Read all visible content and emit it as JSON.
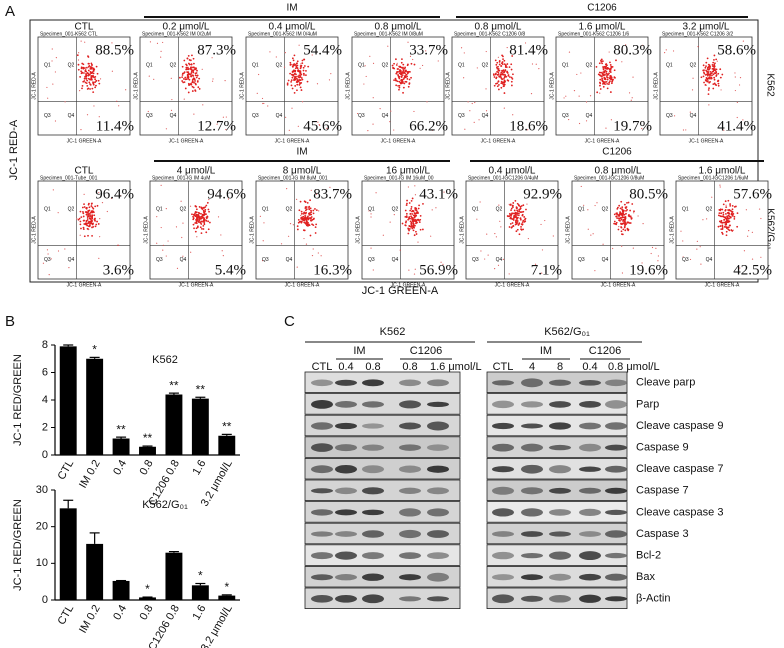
{
  "panel_labels": [
    "A",
    "B",
    "C"
  ],
  "panel_a": {
    "y_label": "JC-1 RED-A",
    "x_label": "JC-1 GREEN-A",
    "quadrant_labels": [
      "Q1",
      "Q2",
      "Q3",
      "Q4"
    ],
    "rows": [
      {
        "cell_line": "K562",
        "control": "CTL",
        "groups": [
          {
            "name": "IM",
            "doses": [
              "0.2 μmol/L",
              "0.4 μmol/L",
              "0.8 μmol/L"
            ]
          },
          {
            "name": "C1206",
            "doses": [
              "0.8 μmol/L",
              "1.6 μmol/L",
              "3.2 μmol/L"
            ]
          }
        ],
        "plots": [
          {
            "title": "Specimen_001-K562 CTL",
            "upper": "88.5%",
            "lower": "11.4%"
          },
          {
            "title": "Specimen_001-K562 IM 0/2uM",
            "upper": "87.3%",
            "lower": "12.7%"
          },
          {
            "title": "Specimen_001-K562 IM 0/4uM",
            "upper": "54.4%",
            "lower": "45.6%"
          },
          {
            "title": "Specimen_001-K562 IM 0/8uM",
            "upper": "33.7%",
            "lower": "66.2%"
          },
          {
            "title": "Specimen_001-K562 C1206 0/8",
            "upper": "81.4%",
            "lower": "18.6%"
          },
          {
            "title": "Specimen_001-K562 C1206 1/6",
            "upper": "80.3%",
            "lower": "19.7%"
          },
          {
            "title": "Specimen_001-K562 C1206 3/2",
            "upper": "58.6%",
            "lower": "41.4%"
          }
        ]
      },
      {
        "cell_line": "K562/G₀₁",
        "control": "CTL",
        "groups": [
          {
            "name": "IM",
            "doses": [
              "4 μmol/L",
              "8 μmol/L",
              "16 μmol/L"
            ]
          },
          {
            "name": "C1206",
            "doses": [
              "0.4 μmol/L",
              "0.8 μmol/L",
              "1.6 μmol/L"
            ]
          }
        ],
        "plots": [
          {
            "title": "Specimen_001-Tube_001",
            "upper": "96.4%",
            "lower": "3.6%"
          },
          {
            "title": "Specimen_001-IG IM 4uM",
            "upper": "94.6%",
            "lower": "5.4%"
          },
          {
            "title": "Specimen_001-IG IM 8uM_001",
            "upper": "83.7%",
            "lower": "16.3%"
          },
          {
            "title": "Specimen_001-IG IM 16uM_00",
            "upper": "43.1%",
            "lower": "56.9%"
          },
          {
            "title": "Specimen_001-IGC1206 0/4uM",
            "upper": "92.9%",
            "lower": "7.1%"
          },
          {
            "title": "Specimen_001-IGC1206 0/8uM",
            "upper": "80.5%",
            "lower": "19.6%"
          },
          {
            "title": "Specimen_001-IGC1206 1/6uM",
            "upper": "57.6%",
            "lower": "42.5%"
          }
        ]
      }
    ]
  },
  "chart_data": [
    {
      "type": "bar",
      "title": "K562",
      "y_label": "JC-1 RED/GREEN",
      "color": "#000000",
      "categories": [
        "CTL",
        "IM 0.2",
        "0.4",
        "0.8",
        "C1206 0.8",
        "1.6",
        "3.2 μmol/L"
      ],
      "values": [
        7.9,
        7.0,
        1.2,
        0.6,
        4.4,
        4.1,
        1.4
      ],
      "errors": [
        0.1,
        0.1,
        0.1,
        0.05,
        0.1,
        0.1,
        0.1
      ],
      "annotations": [
        null,
        "*",
        "**",
        "**",
        "**",
        "**",
        "**"
      ],
      "ylim": [
        0,
        8
      ],
      "yticks": [
        0,
        2,
        4,
        6,
        8
      ]
    },
    {
      "type": "bar",
      "title": "K562/G₀₁",
      "y_label": "JC-1 RED/GREEN",
      "color": "#000000",
      "categories": [
        "CTL",
        "IM 0.2",
        "0.4",
        "0.8",
        "C1206 0.8",
        "1.6",
        "3.2 μmol/L"
      ],
      "values": [
        25,
        15.3,
        5.2,
        0.7,
        12.9,
        4,
        1.2
      ],
      "errors": [
        2.2,
        3,
        0.1,
        0.1,
        0.3,
        0.5,
        0.2
      ],
      "annotations": [
        null,
        null,
        null,
        "*",
        null,
        "*",
        "*"
      ],
      "ylim": [
        0,
        30
      ],
      "yticks": [
        0,
        10,
        20,
        30
      ]
    }
  ],
  "panel_c": {
    "row_labels": [
      "Cleave parp",
      "Parp",
      "Cleave caspase 9",
      "Caspase 9",
      "Cleave caspase 7",
      "Caspase 7",
      "Cleave caspase 3",
      "Caspase 3",
      "Bcl-2",
      "Bax",
      "β-Actin"
    ],
    "blots": [
      {
        "cell_line": "K562",
        "lanes": [
          "CTL",
          "0.4",
          "0.8",
          "0.8",
          "1.6 μmol/L"
        ],
        "groups": [
          "IM",
          "C1206"
        ]
      },
      {
        "cell_line": "K562/G₀₁",
        "lanes": [
          "CTL",
          "4",
          "8",
          "0.4",
          "0.8 μmol/L"
        ],
        "groups": [
          "IM",
          "C1206"
        ]
      }
    ]
  }
}
